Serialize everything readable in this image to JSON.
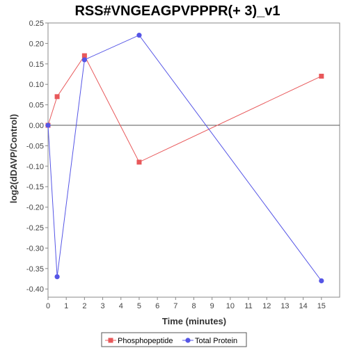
{
  "chart_data": {
    "type": "line",
    "title": "RSS#VNGEAGPVPPPR(+ 3)_v1",
    "xlabel": "Time (minutes)",
    "ylabel": "log2(dDAVP/Control)",
    "xlim": [
      0,
      16
    ],
    "ylim": [
      -0.42,
      0.25
    ],
    "xticks": [
      0,
      1,
      2,
      3,
      4,
      5,
      6,
      7,
      8,
      9,
      10,
      11,
      12,
      13,
      14,
      15
    ],
    "yticks": [
      0.25,
      0.2,
      0.15,
      0.1,
      0.05,
      0.0,
      -0.05,
      -0.1,
      -0.15,
      -0.2,
      -0.25,
      -0.3,
      -0.35,
      -0.4
    ],
    "ytick_labels": [
      "0.25",
      "0.20",
      "0.15",
      "0.10",
      "0.05",
      "0.00",
      "-0.05",
      "-0.10",
      "-0.15",
      "-0.20",
      "-0.25",
      "-0.30",
      "-0.35",
      "-0.40"
    ],
    "zero_line": true,
    "grid": false,
    "legend_position": "bottom",
    "series": [
      {
        "name": "Phosphopeptide",
        "color": "#e8585a",
        "marker": "square",
        "x": [
          0,
          0.5,
          2,
          5,
          15
        ],
        "y": [
          0.0,
          0.07,
          0.17,
          -0.09,
          0.12
        ]
      },
      {
        "name": "Total Protein",
        "color": "#5555e6",
        "marker": "circle",
        "x": [
          0,
          0.5,
          2,
          5,
          15
        ],
        "y": [
          0.0,
          -0.37,
          0.16,
          0.22,
          -0.38
        ]
      }
    ]
  }
}
